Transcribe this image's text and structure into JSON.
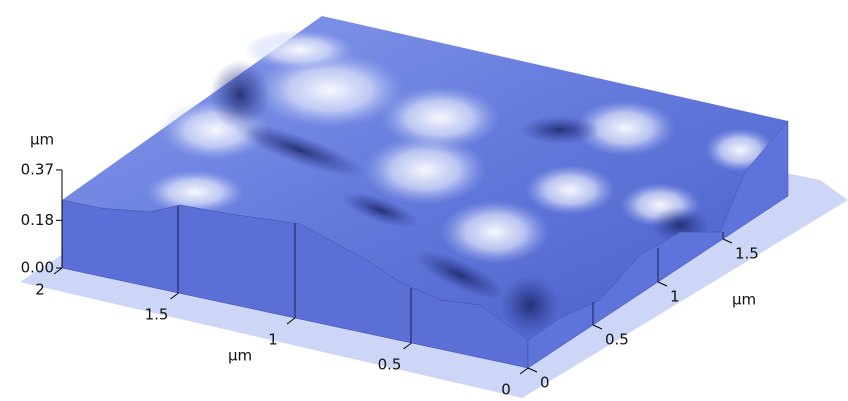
{
  "chart_data": {
    "type": "surface3d",
    "zlabel": "µm",
    "zlim": [
      0,
      0.37
    ],
    "zticks": [
      {
        "value": 0,
        "label": "0.00"
      },
      0.18,
      0.37
    ],
    "xlabel": "µm",
    "xlim": [
      0,
      2
    ],
    "xticks": [
      0,
      0.5,
      1,
      1.5,
      2
    ],
    "ylabel": "µm",
    "ylim": [
      0,
      2
    ],
    "yticks": [
      0,
      0.5,
      1,
      1.5
    ]
  }
}
